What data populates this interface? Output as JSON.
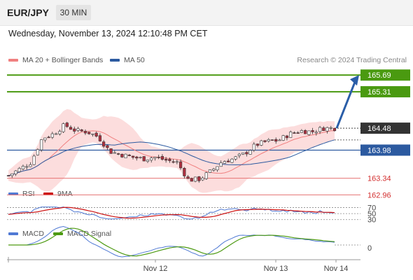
{
  "header": {
    "symbol": "EUR/JPY",
    "timeframe": "30 MIN"
  },
  "datetime": "Wednesday, November 13, 2024 12:10:48 PM CET",
  "legend_main": [
    {
      "label": "MA 20 + Bollinger Bands",
      "color": "#f08080"
    },
    {
      "label": "MA 50",
      "color": "#2c5aa0"
    }
  ],
  "credit": "Research © 2024 Trading Central",
  "legend_rsi": [
    {
      "label": "RSI",
      "color": "#4f79d4"
    },
    {
      "label": "9MA",
      "color": "#cc1111"
    }
  ],
  "legend_macd": [
    {
      "label": "MACD",
      "color": "#4f79d4"
    },
    {
      "label": "MACD Signal",
      "color": "#4d9a12"
    }
  ],
  "colors": {
    "target": "#4a9a10",
    "pivot": "#2c5aa0",
    "support": "#e57373",
    "support_text": "#d32f2f",
    "current_bg": "#333333",
    "candle_up": "#ffffff",
    "candle_down": "#b03040",
    "band_fill": "#fbd7d7",
    "ma20": "#f08080",
    "ma50": "#2c5aa0",
    "arrow": "#2a5ea8"
  },
  "chart_data": {
    "type": "candlestick",
    "price_axis": {
      "min": 162.6,
      "max": 166.3
    },
    "levels": [
      {
        "value": 165.69,
        "label": "165.69",
        "kind": "target"
      },
      {
        "value": 165.31,
        "label": "165.31",
        "kind": "target"
      },
      {
        "value": 164.48,
        "label": "164.48",
        "kind": "current"
      },
      {
        "value": 163.98,
        "label": "163.98",
        "kind": "pivot"
      },
      {
        "value": 163.34,
        "label": "163.34",
        "kind": "support"
      },
      {
        "value": 162.96,
        "label": "162.96",
        "kind": "support"
      }
    ],
    "close_path": [
      163.4,
      163.55,
      163.7,
      164.25,
      164.35,
      164.55,
      164.42,
      164.4,
      164.28,
      163.95,
      163.88,
      163.82,
      163.78,
      163.82,
      163.75,
      163.7,
      163.3,
      163.32,
      163.5,
      163.72,
      163.78,
      163.9,
      164.1,
      164.18,
      164.2,
      164.35,
      164.42,
      164.4,
      164.48,
      164.48
    ],
    "arrow": {
      "from": 164.48,
      "to": 165.69
    },
    "x_ticks": [
      "Nov 12",
      "Nov 13",
      "Nov 14"
    ],
    "rsi": {
      "levels": [
        {
          "value": 70,
          "label": "70"
        },
        {
          "value": 50,
          "label": "50"
        },
        {
          "value": 30,
          "label": "30"
        }
      ]
    },
    "macd": {
      "levels": [
        {
          "value": 0,
          "label": "0"
        }
      ]
    }
  }
}
